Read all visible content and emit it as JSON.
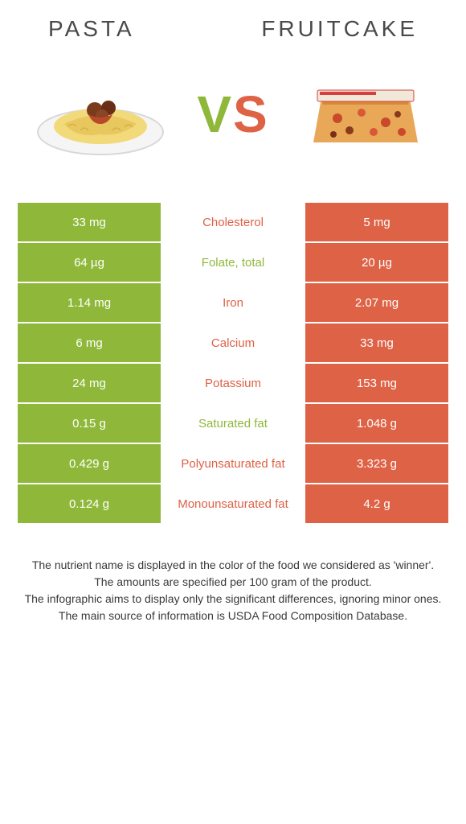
{
  "header": {
    "left_title": "PASTA",
    "right_title": "FRUITCAKE",
    "vs_v": "V",
    "vs_s": "S"
  },
  "colors": {
    "green": "#8fb83a",
    "orange": "#de6246",
    "text": "#4a4a4a"
  },
  "rows": [
    {
      "left": "33 mg",
      "mid": "Cholesterol",
      "right": "5 mg",
      "winner": "orange"
    },
    {
      "left": "64 µg",
      "mid": "Folate, total",
      "right": "20 µg",
      "winner": "green"
    },
    {
      "left": "1.14 mg",
      "mid": "Iron",
      "right": "2.07 mg",
      "winner": "orange"
    },
    {
      "left": "6 mg",
      "mid": "Calcium",
      "right": "33 mg",
      "winner": "orange"
    },
    {
      "left": "24 mg",
      "mid": "Potassium",
      "right": "153 mg",
      "winner": "orange"
    },
    {
      "left": "0.15 g",
      "mid": "Saturated fat",
      "right": "1.048 g",
      "winner": "green"
    },
    {
      "left": "0.429 g",
      "mid": "Polyunsaturated fat",
      "right": "3.323 g",
      "winner": "orange"
    },
    {
      "left": "0.124 g",
      "mid": "Monounsaturated fat",
      "right": "4.2 g",
      "winner": "orange"
    }
  ],
  "footer": {
    "line1": "The nutrient name is displayed in the color of the food we considered as 'winner'.",
    "line2": "The amounts are specified per 100 gram of the product.",
    "line3": "The infographic aims to display only the significant differences, ignoring minor ones.",
    "line4": "The main source of information is USDA Food Composition Database."
  }
}
